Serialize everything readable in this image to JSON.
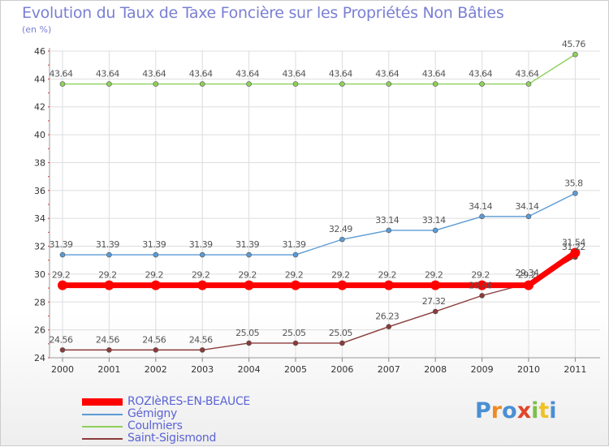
{
  "header": {
    "title": "Evolution du Taux de Taxe Foncière sur les Propriétés Non Bâties",
    "unit": "(en %)"
  },
  "brand": {
    "letters": [
      "P",
      "r",
      "o",
      "x",
      "i",
      "t",
      "i"
    ],
    "colors": [
      "#4a8fd4",
      "#f08a24",
      "#4a8fd4",
      "#e0452a",
      "#7cc04a",
      "#f0c224",
      "#4a8fd4"
    ]
  },
  "chart_data": {
    "type": "line",
    "title": "Evolution du Taux de Taxe Foncière sur les Propriétés Non Bâties",
    "ylabel": "(en %)",
    "xlabel": "",
    "x": [
      "2000",
      "2001",
      "2002",
      "2003",
      "2004",
      "2005",
      "2006",
      "2007",
      "2008",
      "2009",
      "2010",
      "2011"
    ],
    "ylim": [
      24,
      46
    ],
    "yticks": [
      "24",
      "26",
      "28",
      "30",
      "32",
      "34",
      "36",
      "38",
      "40",
      "42",
      "44",
      "46"
    ],
    "grid": true,
    "legend_position": "bottom-left",
    "series": [
      {
        "name": "ROZIèRES-EN-BEAUCE",
        "color": "#ff0000",
        "values": [
          29.2,
          29.2,
          29.2,
          29.2,
          29.2,
          29.2,
          29.2,
          29.2,
          29.2,
          29.2,
          29.2,
          31.54
        ],
        "labels": [
          "29.2",
          "29.2",
          "29.2",
          "29.2",
          "29.2",
          "29.2",
          "29.2",
          "29.2",
          "29.2",
          "29.2",
          "29.2",
          "31.54"
        ]
      },
      {
        "name": "Gémigny",
        "color": "#5b9bd5",
        "values": [
          31.39,
          31.39,
          31.39,
          31.39,
          31.39,
          31.39,
          32.49,
          33.14,
          33.14,
          34.14,
          34.14,
          35.8
        ],
        "labels": [
          "31.39",
          "31.39",
          "31.39",
          "31.39",
          "31.39",
          "31.39",
          "32.49",
          "33.14",
          "33.14",
          "34.14",
          "34.14",
          "35.8"
        ]
      },
      {
        "name": "Coulmiers",
        "color": "#8ed05b",
        "values": [
          43.64,
          43.64,
          43.64,
          43.64,
          43.64,
          43.64,
          43.64,
          43.64,
          43.64,
          43.64,
          43.64,
          45.76
        ],
        "labels": [
          "43.64",
          "43.64",
          "43.64",
          "43.64",
          "43.64",
          "43.64",
          "43.64",
          "43.64",
          "43.64",
          "43.64",
          "43.64",
          "45.76"
        ]
      },
      {
        "name": "Saint-Sigismond",
        "color": "#8b3a3a",
        "values": [
          24.56,
          24.56,
          24.56,
          24.56,
          25.05,
          25.05,
          25.05,
          26.23,
          27.32,
          28.46,
          29.34,
          31.22
        ],
        "labels": [
          "24.56",
          "24.56",
          "24.56",
          "24.56",
          "25.05",
          "25.05",
          "25.05",
          "26.23",
          "27.32",
          "28.46",
          "29.34",
          "31.22"
        ]
      }
    ]
  }
}
